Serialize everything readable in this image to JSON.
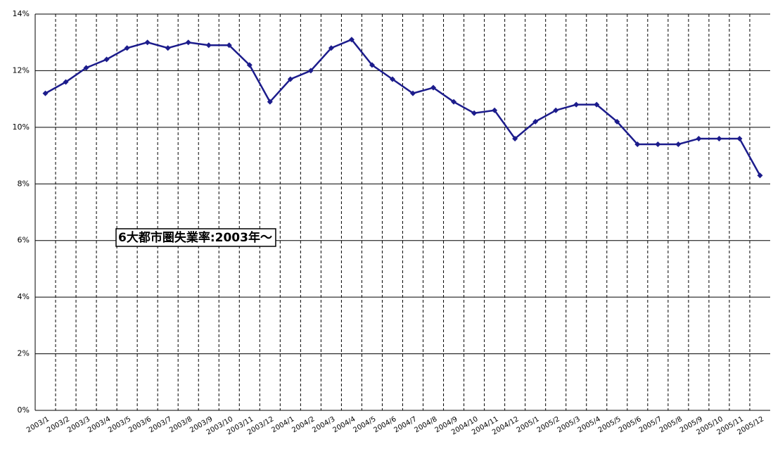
{
  "chart_data": {
    "type": "line",
    "annotation": "6大都市圏失業率:2003年～",
    "categories": [
      "2003/1",
      "2003/2",
      "2003/3",
      "2003/4",
      "2003/5",
      "2003/6",
      "2003/7",
      "2003/8",
      "2003/9",
      "2003/10",
      "2003/11",
      "2003/12",
      "2004/1",
      "2004/2",
      "2004/3",
      "2004/4",
      "2004/5",
      "2004/6",
      "2004/7",
      "2004/8",
      "2004/9",
      "2004/10",
      "2004/11",
      "2004/12",
      "2005/1",
      "2005/2",
      "2005/3",
      "2005/4",
      "2005/5",
      "2005/6",
      "2005/7",
      "2005/8",
      "2005/9",
      "2005/10",
      "2005/11",
      "2005/12"
    ],
    "values": [
      11.2,
      11.6,
      12.1,
      12.4,
      12.8,
      13.0,
      12.8,
      13.0,
      12.9,
      12.9,
      12.2,
      10.9,
      11.7,
      12.0,
      12.8,
      13.1,
      12.2,
      11.7,
      11.2,
      11.4,
      10.9,
      10.5,
      10.6,
      9.6,
      10.2,
      10.6,
      10.8,
      10.8,
      10.2,
      9.4,
      9.4,
      9.4,
      9.6,
      9.6,
      9.6,
      8.3
    ],
    "color": "#1c1c8c",
    "ylim": [
      0,
      14
    ],
    "yticks": [
      {
        "value": 0,
        "label": "0%"
      },
      {
        "value": 2,
        "label": "2%"
      },
      {
        "value": 4,
        "label": "4%"
      },
      {
        "value": 6,
        "label": "6%"
      },
      {
        "value": 8,
        "label": "8%"
      },
      {
        "value": 10,
        "label": "10%"
      },
      {
        "value": 12,
        "label": "12%"
      },
      {
        "value": 14,
        "label": "14%"
      }
    ],
    "grid": true
  }
}
